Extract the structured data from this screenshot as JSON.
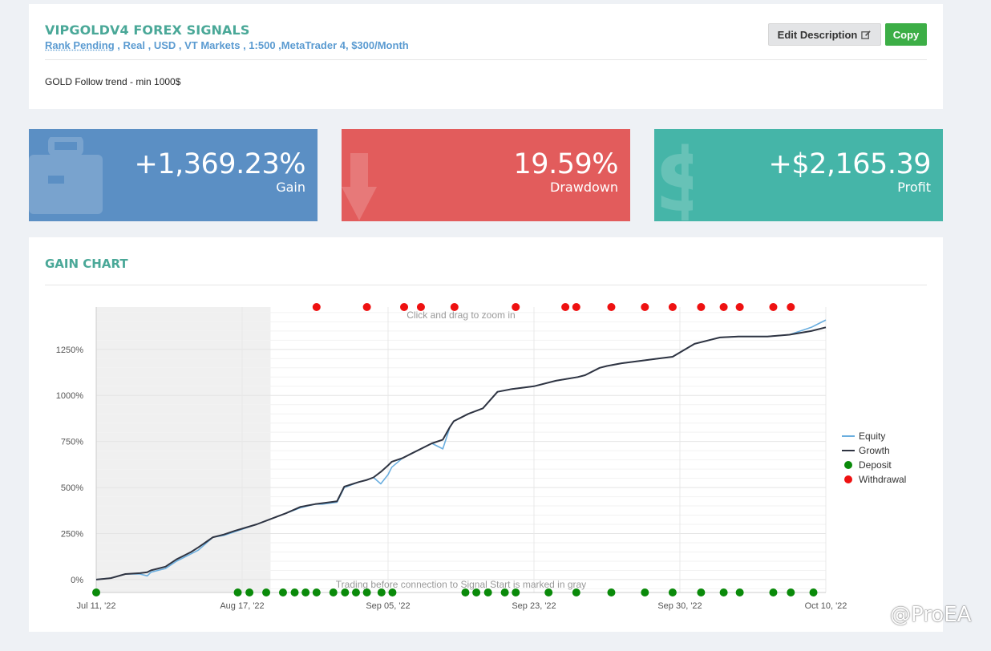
{
  "header": {
    "title": "VIPGOLDV4 FOREX SIGNALS",
    "rank": "Rank Pending",
    "details": " , Real , USD , VT Markets , 1:500 ,MetaTrader 4, $300/Month",
    "edit_label": "Edit Description",
    "copy_label": "Copy",
    "description": "GOLD Follow trend - min 1000$"
  },
  "stats": [
    {
      "value": "+1,369.23%",
      "label": "Gain",
      "color": "#5b8fc4",
      "icon": "briefcase-icon"
    },
    {
      "value": "19.59%",
      "label": "Drawdown",
      "color": "#e25c5c",
      "icon": "arrow-down-icon"
    },
    {
      "value": "+$2,165.39",
      "label": "Profit",
      "color": "#45b5a8",
      "icon": "dollar-icon"
    }
  ],
  "chart_title": "GAIN CHART",
  "chart_data": {
    "type": "line",
    "note_top": "Click and drag to zoom in",
    "note_bottom": "Trading before connection to Signal Start is marked in gray",
    "x_ticks": [
      "Jul 11, '22",
      "Aug 17, '22",
      "Sep 05, '22",
      "Sep 23, '22",
      "Sep 30, '22",
      "Oct 10, '22"
    ],
    "y_ticks": [
      "0%",
      "250%",
      "500%",
      "750%",
      "1000%",
      "1250%"
    ],
    "ylim": [
      -70,
      1480
    ],
    "gray_region_end": 0.239,
    "series": [
      {
        "name": "Equity",
        "color": "#6aaedf",
        "x": [
          0,
          0.02,
          0.04,
          0.06,
          0.07,
          0.075,
          0.085,
          0.095,
          0.11,
          0.12,
          0.13,
          0.14,
          0.16,
          0.175,
          0.19,
          0.22,
          0.24,
          0.26,
          0.28,
          0.3,
          0.31,
          0.33,
          0.34,
          0.36,
          0.37,
          0.38,
          0.39,
          0.4,
          0.405,
          0.42,
          0.43,
          0.46,
          0.475,
          0.485,
          0.49,
          0.5,
          0.51,
          0.53,
          0.55,
          0.57,
          0.58,
          0.6,
          0.63,
          0.66,
          0.67,
          0.69,
          0.7,
          0.72,
          0.75,
          0.77,
          0.79,
          0.82,
          0.85,
          0.855,
          0.88,
          0.92,
          0.95,
          0.98,
          1.0
        ],
        "y": [
          0,
          8,
          30,
          30,
          20,
          40,
          50,
          60,
          100,
          120,
          140,
          160,
          230,
          240,
          260,
          300,
          330,
          360,
          390,
          410,
          410,
          420,
          500,
          530,
          540,
          555,
          520,
          570,
          610,
          660,
          680,
          740,
          710,
          830,
          860,
          880,
          900,
          930,
          1020,
          1035,
          1040,
          1050,
          1080,
          1100,
          1110,
          1150,
          1160,
          1175,
          1190,
          1200,
          1210,
          1280,
          1310,
          1315,
          1320,
          1320,
          1330,
          1370,
          1410
        ]
      },
      {
        "name": "Growth",
        "color": "#2f3442",
        "x": [
          0,
          0.02,
          0.04,
          0.06,
          0.07,
          0.075,
          0.085,
          0.095,
          0.11,
          0.12,
          0.13,
          0.14,
          0.16,
          0.175,
          0.19,
          0.22,
          0.24,
          0.26,
          0.28,
          0.3,
          0.31,
          0.33,
          0.34,
          0.36,
          0.37,
          0.38,
          0.39,
          0.4,
          0.405,
          0.42,
          0.43,
          0.46,
          0.475,
          0.485,
          0.49,
          0.5,
          0.51,
          0.53,
          0.55,
          0.57,
          0.58,
          0.6,
          0.63,
          0.66,
          0.67,
          0.69,
          0.7,
          0.72,
          0.75,
          0.77,
          0.79,
          0.82,
          0.85,
          0.855,
          0.88,
          0.92,
          0.95,
          0.98,
          1.0
        ],
        "y": [
          0,
          8,
          30,
          35,
          40,
          50,
          60,
          70,
          110,
          130,
          150,
          175,
          230,
          245,
          265,
          300,
          330,
          360,
          395,
          410,
          415,
          425,
          505,
          530,
          540,
          555,
          585,
          620,
          640,
          660,
          680,
          740,
          760,
          830,
          860,
          880,
          900,
          930,
          1020,
          1035,
          1040,
          1050,
          1080,
          1100,
          1110,
          1150,
          1160,
          1175,
          1190,
          1200,
          1210,
          1280,
          1310,
          1315,
          1320,
          1320,
          1330,
          1350,
          1370
        ]
      }
    ],
    "deposit_x": [
      0,
      0.194,
      0.21,
      0.233,
      0.256,
      0.272,
      0.287,
      0.302,
      0.325,
      0.341,
      0.356,
      0.371,
      0.391,
      0.406,
      0.506,
      0.521,
      0.537,
      0.56,
      0.575,
      0.62,
      0.658,
      0.706,
      0.752,
      0.79,
      0.829,
      0.86,
      0.882,
      0.928,
      0.952,
      0.983
    ],
    "withdrawal_x": [
      0.302,
      0.371,
      0.422,
      0.445,
      0.491,
      0.575,
      0.643,
      0.658,
      0.706,
      0.752,
      0.79,
      0.829,
      0.86,
      0.882,
      0.928,
      0.952
    ],
    "legend": [
      {
        "label": "Equity",
        "kind": "line",
        "color": "#6aaedf"
      },
      {
        "label": "Growth",
        "kind": "line",
        "color": "#2f3442"
      },
      {
        "label": "Deposit",
        "kind": "dot",
        "color": "#0a8a0a"
      },
      {
        "label": "Withdrawal",
        "kind": "dot",
        "color": "#ee1111"
      }
    ]
  },
  "watermark": "@ProEA"
}
